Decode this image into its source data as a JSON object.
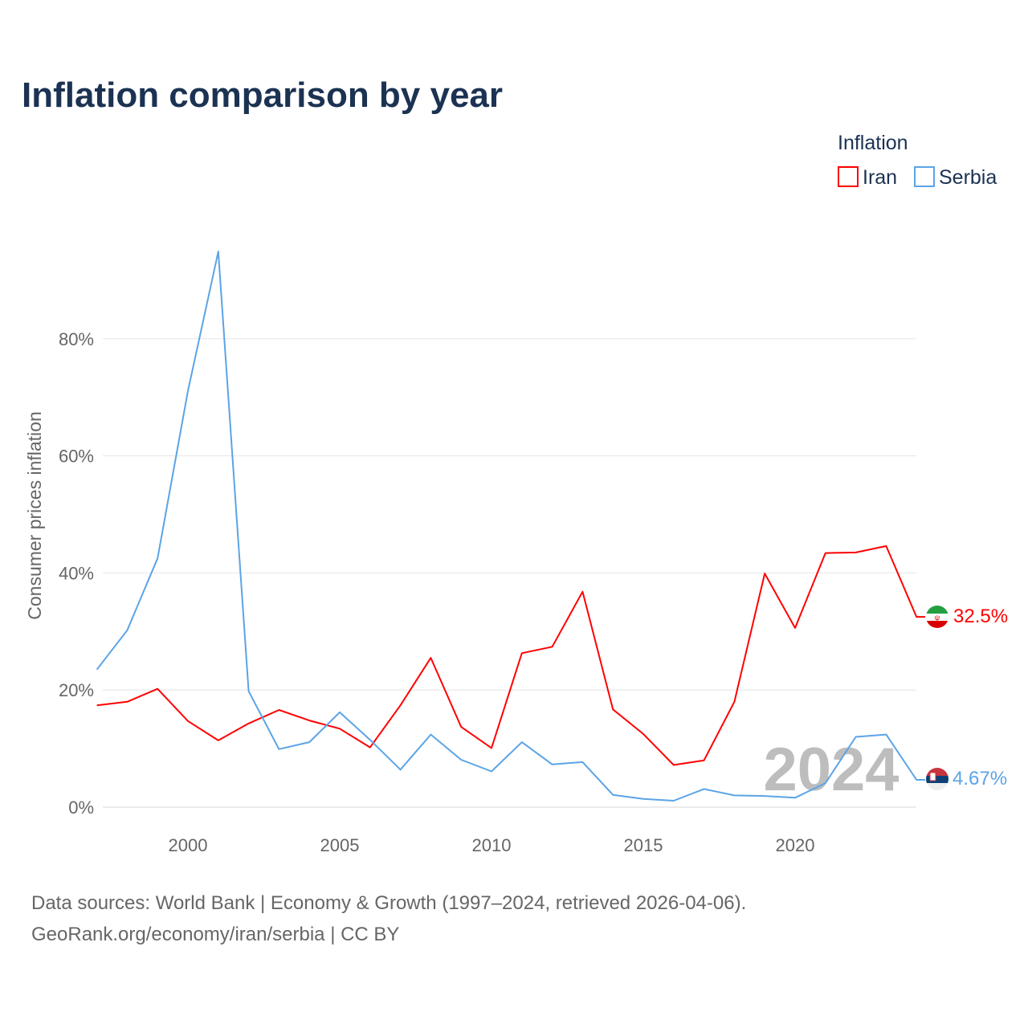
{
  "title": "Inflation comparison by year",
  "legend": {
    "title": "Inflation",
    "items": [
      {
        "name": "Iran",
        "color": "#ff0000"
      },
      {
        "name": "Serbia",
        "color": "#5ba4e6"
      }
    ]
  },
  "source_line1": "Data sources: World Bank | Economy & Growth (1997–2024, retrieved 2026-04-06).",
  "source_line2": "GeoRank.org/economy/iran/serbia | CC BY",
  "chart_data": {
    "type": "line",
    "title": "Inflation comparison by year",
    "xlabel": "",
    "ylabel": "Consumer prices inflation",
    "x": [
      1997,
      1998,
      1999,
      2000,
      2001,
      2002,
      2003,
      2004,
      2005,
      2006,
      2007,
      2008,
      2009,
      2010,
      2011,
      2012,
      2013,
      2014,
      2015,
      2016,
      2017,
      2018,
      2019,
      2020,
      2021,
      2022,
      2023,
      2024
    ],
    "xlim": [
      1997,
      2024
    ],
    "ylim": [
      0,
      100
    ],
    "x_ticks": [
      "2000",
      "2005",
      "2010",
      "2015",
      "2020"
    ],
    "y_ticks": [
      "0%",
      "20%",
      "40%",
      "60%",
      "80%"
    ],
    "grid": true,
    "legend_position": "top-right",
    "watermark": "2024",
    "series": [
      {
        "name": "Iran",
        "color": "#ff0000",
        "end_label": "32.5%",
        "values": [
          17.4,
          18.0,
          20.2,
          14.7,
          11.4,
          14.3,
          16.6,
          14.8,
          13.4,
          10.2,
          17.4,
          25.5,
          13.7,
          10.1,
          26.3,
          27.4,
          36.8,
          16.7,
          12.5,
          7.2,
          8.0,
          18.0,
          39.9,
          30.6,
          43.4,
          43.5,
          44.6,
          32.5
        ]
      },
      {
        "name": "Serbia",
        "color": "#5ba4e6",
        "end_label": "4.67%",
        "values": [
          23.5,
          30.2,
          42.5,
          71.1,
          94.9,
          19.8,
          9.9,
          11.1,
          16.2,
          11.5,
          6.4,
          12.4,
          8.1,
          6.1,
          11.1,
          7.3,
          7.7,
          2.1,
          1.4,
          1.1,
          3.1,
          2.0,
          1.9,
          1.6,
          4.1,
          12.0,
          12.4,
          4.67
        ]
      }
    ]
  }
}
